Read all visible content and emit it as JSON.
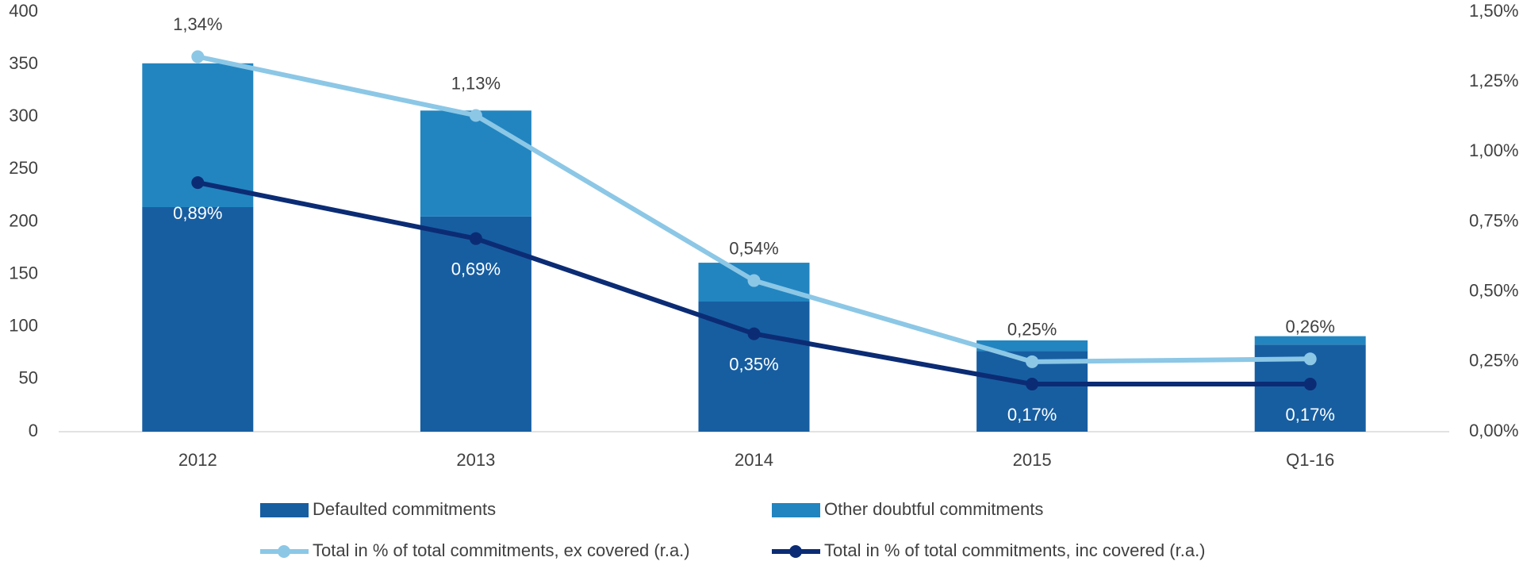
{
  "chart_data": {
    "type": "bar",
    "categories": [
      "2012",
      "2013",
      "2014",
      "2015",
      "Q1-16"
    ],
    "series": [
      {
        "name": "Defaulted commitments",
        "type": "bar",
        "color": "#175ea1",
        "values": [
          214,
          205,
          124,
          77,
          83
        ]
      },
      {
        "name": "Other doubtful commitments",
        "type": "bar",
        "color": "#2285c0",
        "values": [
          137,
          101,
          37,
          10,
          8
        ]
      },
      {
        "name": "Total in % of total commitments, ex covered (r.a.)",
        "type": "line",
        "axis": "y2",
        "color": "#8cc7e6",
        "label_position": "above",
        "values": [
          1.34,
          1.13,
          0.54,
          0.25,
          0.26
        ],
        "value_labels": [
          "1,34%",
          "1,13%",
          "0,54%",
          "0,25%",
          "0,26%"
        ]
      },
      {
        "name": "Total in % of total commitments, inc covered (r.a.)",
        "type": "line",
        "axis": "y2",
        "color": "#0b2c74",
        "label_position": "below",
        "values": [
          0.89,
          0.69,
          0.35,
          0.17,
          0.17
        ],
        "value_labels": [
          "0,89%",
          "0,69%",
          "0,35%",
          "0,17%",
          "0,17%"
        ]
      }
    ],
    "ylim": [
      0,
      400
    ],
    "yticks": [
      0,
      50,
      100,
      150,
      200,
      250,
      300,
      350,
      400
    ],
    "y2lim": [
      0,
      1.5
    ],
    "y2ticks": [
      {
        "value": 0,
        "label": "0,00%"
      },
      {
        "value": 0.25,
        "label": "0,25%"
      },
      {
        "value": 0.5,
        "label": "0,50%"
      },
      {
        "value": 0.75,
        "label": "0,75%"
      },
      {
        "value": 1,
        "label": "1,00%"
      },
      {
        "value": 1.25,
        "label": "1,25%"
      },
      {
        "value": 1.5,
        "label": "1,50%"
      }
    ],
    "grid": false,
    "legend": "bottom"
  }
}
